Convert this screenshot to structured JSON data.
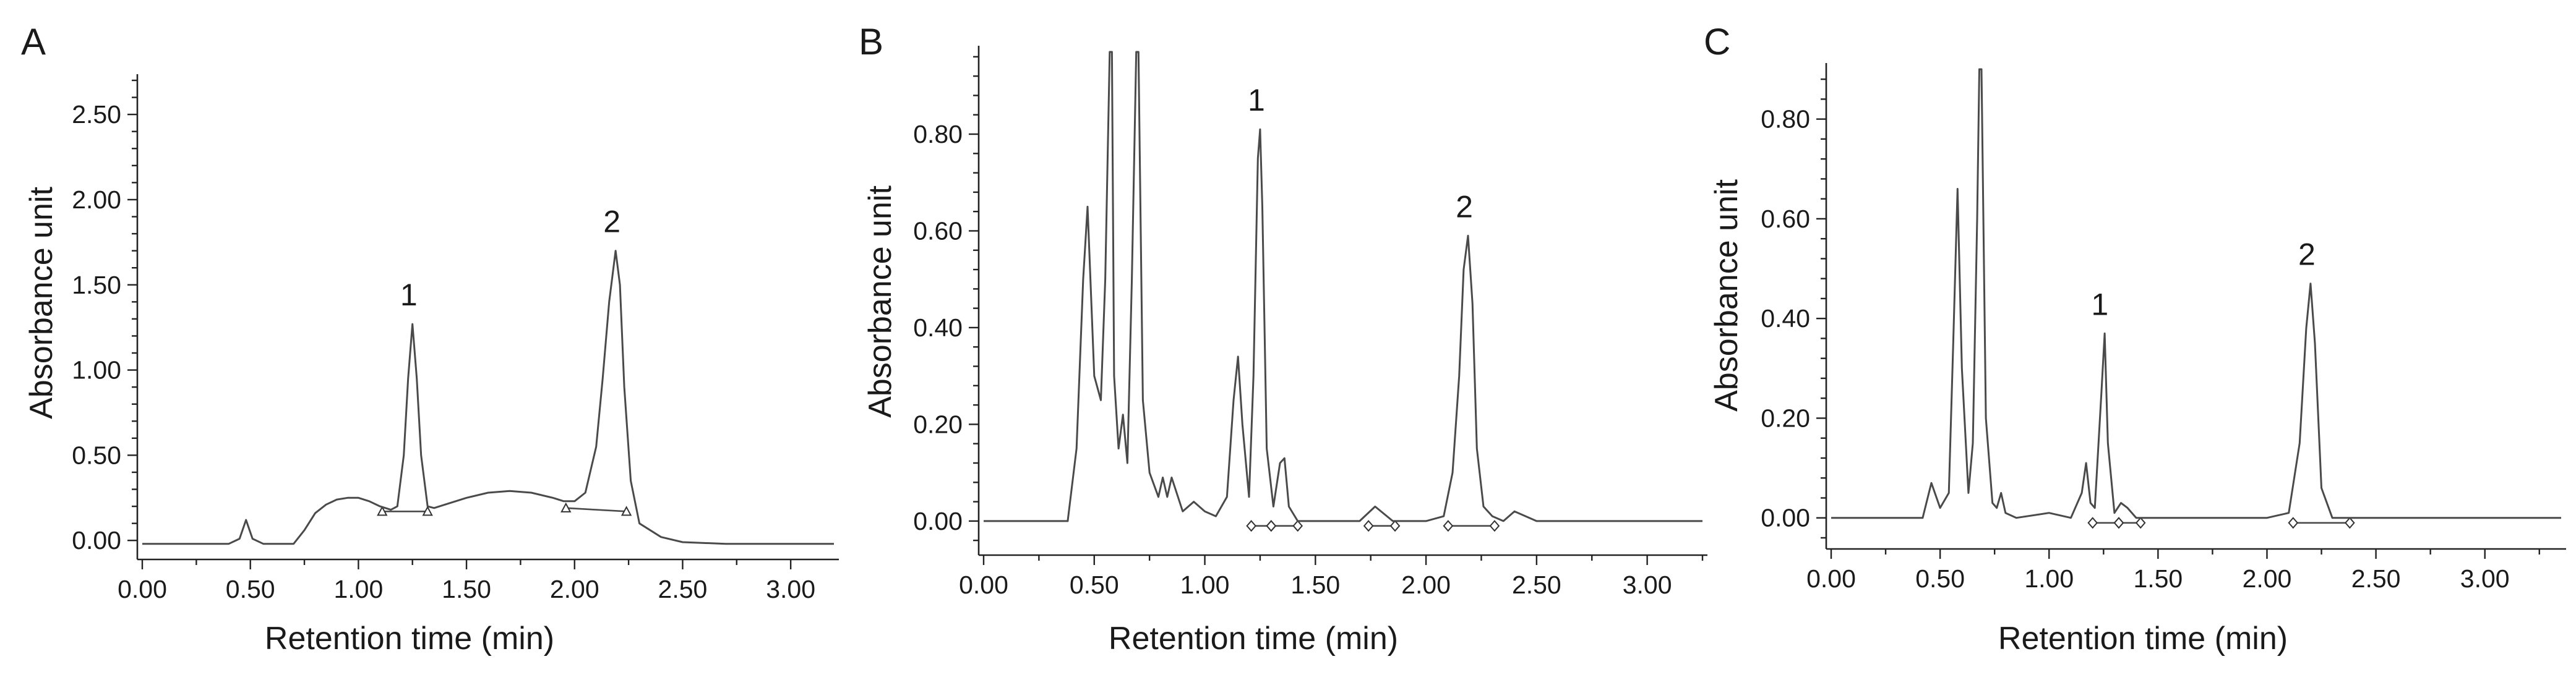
{
  "chart_data": [
    {
      "type": "line",
      "panel": "A",
      "xlabel": "Retention time (min)",
      "ylabel": "Absorbance unit",
      "xlim": [
        0,
        3.2
      ],
      "ylim": [
        -0.05,
        2.7
      ],
      "x_ticks": [
        "0.00",
        "0.50",
        "1.00",
        "1.50",
        "2.00",
        "2.50",
        "3.00"
      ],
      "y_ticks": [
        "0.00",
        "0.50",
        "1.00",
        "1.50",
        "2.00",
        "2.50"
      ],
      "baseline_markers": "triangle",
      "series": [
        {
          "x": [
            0,
            0.4,
            0.45,
            0.48,
            0.51,
            0.56,
            0.7,
            0.75,
            0.8,
            0.85,
            0.9,
            0.95,
            1.0,
            1.05,
            1.1,
            1.15,
            1.18,
            1.21,
            1.23,
            1.25,
            1.27,
            1.29,
            1.32,
            1.35,
            1.4,
            1.5,
            1.6,
            1.7,
            1.8,
            1.9,
            1.95,
            2.0,
            2.05,
            2.1,
            2.13,
            2.16,
            2.19,
            2.21,
            2.23,
            2.26,
            2.3,
            2.4,
            2.5,
            2.7,
            3.0,
            3.2
          ],
          "y": [
            -0.02,
            -0.02,
            0.01,
            0.12,
            0.01,
            -0.02,
            -0.02,
            0.06,
            0.16,
            0.21,
            0.24,
            0.25,
            0.25,
            0.23,
            0.2,
            0.18,
            0.2,
            0.5,
            0.95,
            1.27,
            0.95,
            0.5,
            0.2,
            0.19,
            0.21,
            0.25,
            0.28,
            0.29,
            0.28,
            0.25,
            0.23,
            0.23,
            0.28,
            0.55,
            0.95,
            1.4,
            1.7,
            1.5,
            0.9,
            0.35,
            0.1,
            0.02,
            -0.01,
            -0.02,
            -0.02,
            -0.02
          ]
        }
      ],
      "peaks": [
        {
          "label": "1",
          "x": 1.25,
          "y": 1.27
        },
        {
          "label": "2",
          "x": 2.19,
          "y": 1.7
        }
      ],
      "integration_baselines": [
        {
          "x": [
            1.11,
            1.32
          ],
          "y": [
            0.17,
            0.17
          ]
        },
        {
          "x": [
            1.96,
            2.24
          ],
          "y": [
            0.19,
            0.17
          ]
        }
      ]
    },
    {
      "type": "line",
      "panel": "B",
      "xlabel": "Retention time (min)",
      "ylabel": "Absorbance unit",
      "xlim": [
        0,
        3.25
      ],
      "ylim": [
        -0.05,
        0.97
      ],
      "x_ticks": [
        "0.00",
        "0.50",
        "1.00",
        "1.50",
        "2.00",
        "2.50",
        "3.00"
      ],
      "y_ticks": [
        "0.00",
        "0.20",
        "0.40",
        "0.60",
        "0.80"
      ],
      "baseline_markers": "diamond",
      "series": [
        {
          "x": [
            0,
            0.38,
            0.42,
            0.45,
            0.47,
            0.5,
            0.53,
            0.55,
            0.57,
            0.58,
            0.59,
            0.61,
            0.63,
            0.65,
            0.67,
            0.69,
            0.7,
            0.72,
            0.75,
            0.79,
            0.81,
            0.83,
            0.85,
            0.9,
            0.95,
            1.0,
            1.05,
            1.1,
            1.13,
            1.15,
            1.17,
            1.2,
            1.22,
            1.24,
            1.25,
            1.26,
            1.28,
            1.31,
            1.34,
            1.36,
            1.38,
            1.42,
            1.5,
            1.7,
            1.77,
            1.85,
            2.0,
            2.08,
            2.12,
            2.15,
            2.17,
            2.19,
            2.21,
            2.23,
            2.26,
            2.3,
            2.35,
            2.4,
            2.5,
            3.0,
            3.25
          ],
          "y": [
            0.0,
            0.0,
            0.15,
            0.5,
            0.65,
            0.3,
            0.25,
            0.5,
            0.97,
            0.97,
            0.3,
            0.15,
            0.22,
            0.12,
            0.5,
            0.97,
            0.97,
            0.25,
            0.1,
            0.05,
            0.09,
            0.05,
            0.09,
            0.02,
            0.04,
            0.02,
            0.01,
            0.05,
            0.25,
            0.34,
            0.2,
            0.05,
            0.3,
            0.75,
            0.81,
            0.65,
            0.15,
            0.03,
            0.12,
            0.13,
            0.03,
            0.0,
            0.0,
            0.0,
            0.03,
            0.0,
            0.0,
            0.01,
            0.1,
            0.3,
            0.52,
            0.59,
            0.45,
            0.15,
            0.03,
            0.01,
            0.0,
            0.02,
            0.0,
            0.0,
            0.0
          ]
        }
      ],
      "peaks": [
        {
          "label": "1",
          "x": 1.25,
          "y": 0.81
        },
        {
          "label": "2",
          "x": 2.19,
          "y": 0.59
        }
      ],
      "integration_baselines": [
        {
          "x": [
            1.21,
            1.3
          ],
          "y": [
            -0.01,
            -0.01
          ]
        },
        {
          "x": [
            1.3,
            1.42
          ],
          "y": [
            -0.01,
            -0.01
          ]
        },
        {
          "x": [
            1.74,
            1.86
          ],
          "y": [
            -0.01,
            -0.01
          ]
        },
        {
          "x": [
            2.1,
            2.31
          ],
          "y": [
            -0.01,
            -0.01
          ]
        }
      ]
    },
    {
      "type": "line",
      "panel": "C",
      "xlabel": "Retention time (min)",
      "ylabel": "Absorbance unit",
      "xlim": [
        0,
        3.35
      ],
      "ylim": [
        -0.04,
        0.9
      ],
      "x_ticks": [
        "0.00",
        "0.50",
        "1.00",
        "1.50",
        "2.00",
        "2.50",
        "3.00"
      ],
      "y_ticks": [
        "0.00",
        "0.20",
        "0.40",
        "0.60",
        "0.80"
      ],
      "baseline_markers": "diamond",
      "series": [
        {
          "x": [
            0,
            0.42,
            0.46,
            0.5,
            0.54,
            0.56,
            0.58,
            0.6,
            0.63,
            0.65,
            0.67,
            0.68,
            0.69,
            0.71,
            0.74,
            0.76,
            0.78,
            0.8,
            0.85,
            1.0,
            1.1,
            1.15,
            1.17,
            1.19,
            1.21,
            1.24,
            1.255,
            1.27,
            1.3,
            1.33,
            1.36,
            1.4,
            1.5,
            2.0,
            2.1,
            2.15,
            2.18,
            2.2,
            2.22,
            2.25,
            2.3,
            2.5,
            3.35
          ],
          "y": [
            0.0,
            0.0,
            0.07,
            0.02,
            0.05,
            0.35,
            0.66,
            0.3,
            0.05,
            0.15,
            0.6,
            0.9,
            0.9,
            0.2,
            0.03,
            0.02,
            0.05,
            0.01,
            0.0,
            0.01,
            0.0,
            0.05,
            0.11,
            0.03,
            0.02,
            0.25,
            0.37,
            0.15,
            0.01,
            0.03,
            0.02,
            0.0,
            0.0,
            0.0,
            0.01,
            0.15,
            0.38,
            0.47,
            0.35,
            0.06,
            0.0,
            0.0,
            0.0
          ]
        }
      ],
      "peaks": [
        {
          "label": "1",
          "x": 1.25,
          "y": 0.37
        },
        {
          "label": "2",
          "x": 2.2,
          "y": 0.47
        }
      ],
      "integration_baselines": [
        {
          "x": [
            1.2,
            1.32
          ],
          "y": [
            -0.01,
            -0.01
          ]
        },
        {
          "x": [
            1.32,
            1.42
          ],
          "y": [
            -0.01,
            -0.01
          ]
        },
        {
          "x": [
            2.12,
            2.38
          ],
          "y": [
            -0.01,
            -0.01
          ]
        }
      ]
    }
  ]
}
